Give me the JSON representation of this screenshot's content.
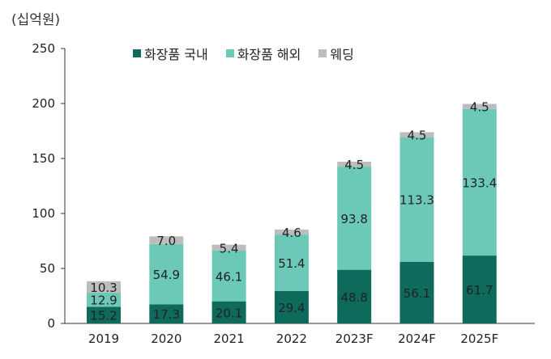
{
  "chart_data": {
    "type": "bar",
    "stacked": true,
    "unit_label": "(십억원)",
    "categories": [
      "2019",
      "2020",
      "2021",
      "2022",
      "2023F",
      "2024F",
      "2025F"
    ],
    "series": [
      {
        "name": "화장품 국내",
        "color": "#0e6b5c",
        "values": [
          15.2,
          17.3,
          20.1,
          29.4,
          48.8,
          56.1,
          61.7
        ],
        "labels": [
          "15.2",
          "17.3",
          "20.1",
          "29.4",
          "48.8",
          "56.1",
          "61.7"
        ]
      },
      {
        "name": "화장품 해외",
        "color": "#6cc9b8",
        "values": [
          12.9,
          54.9,
          46.1,
          51.4,
          93.8,
          113.3,
          133.4
        ],
        "labels": [
          "12.9",
          "54.9",
          "46.1",
          "51.4",
          "93.8",
          "113.3",
          "133.4"
        ]
      },
      {
        "name": "웨딩",
        "color": "#bdbdbd",
        "values": [
          10.3,
          7.0,
          5.4,
          4.6,
          4.5,
          4.5,
          4.5
        ],
        "labels": [
          "10.3",
          "7.0",
          "5.4",
          "4.6",
          "4.5",
          "4.5",
          "4.5"
        ]
      }
    ],
    "ylim": [
      0,
      250
    ],
    "yticks": [
      0,
      50,
      100,
      150,
      200,
      250
    ],
    "legend_position": "top",
    "grid": false
  }
}
